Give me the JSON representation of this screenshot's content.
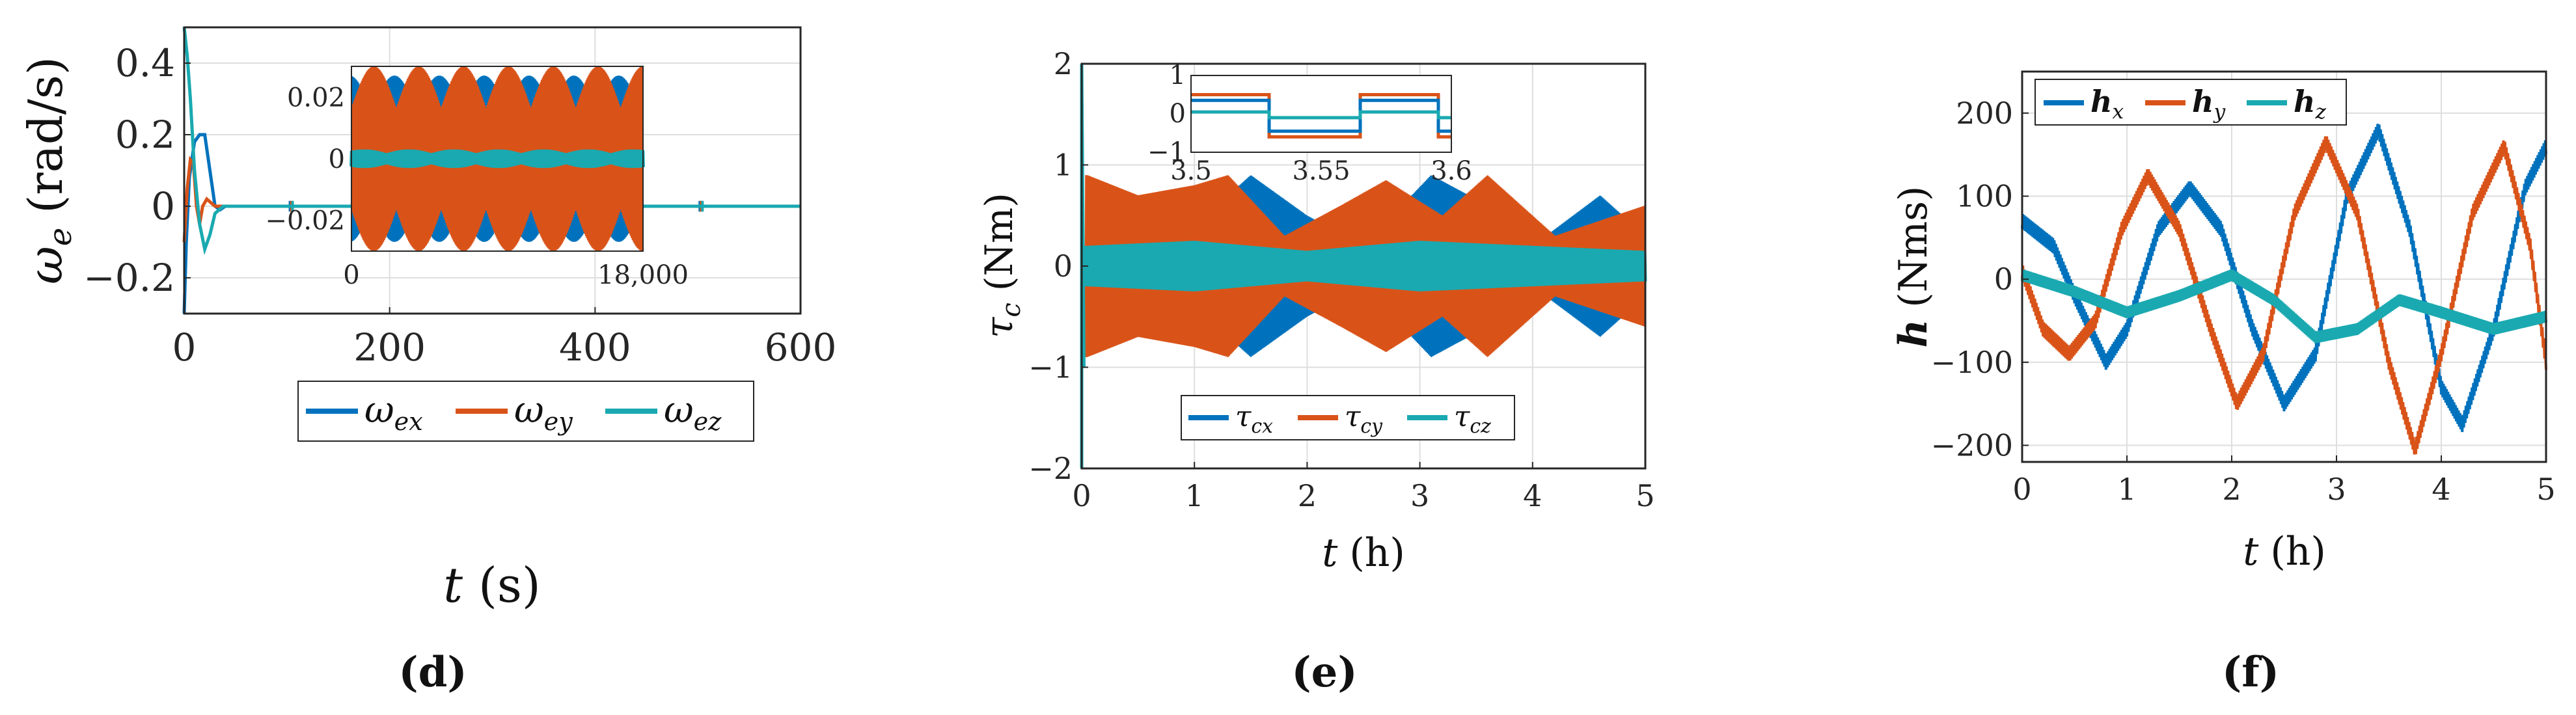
{
  "colors": {
    "blue": "#0072BD",
    "orange": "#D95319",
    "teal": "#1AA9B0",
    "grid": "#DEDEDE",
    "axis": "#262626"
  },
  "chart_data": [
    {
      "id": "d",
      "caption": "(d)",
      "type": "line",
      "xlabel_sym": "t",
      "xlabel_unit": "(s)",
      "ylabel_sym": "ω",
      "ylabel_sub": "e",
      "ylabel_unit": "(rad/s)",
      "xlim": [
        0,
        600
      ],
      "ylim": [
        -0.3,
        0.5
      ],
      "xticks": [
        0,
        200,
        400,
        600
      ],
      "xtick_labels": [
        "0",
        "200",
        "400",
        "600"
      ],
      "yticks": [
        -0.2,
        0,
        0.2,
        0.4
      ],
      "ytick_labels": [
        "−0.2",
        "0",
        "0.2",
        "0.4"
      ],
      "legend": [
        {
          "sym": "ω",
          "sub": "ex",
          "color": "blue"
        },
        {
          "sym": "ω",
          "sub": "ey",
          "color": "orange"
        },
        {
          "sym": "ω",
          "sub": "ez",
          "color": "teal"
        }
      ],
      "series": [
        {
          "name": "ω_ex",
          "color": "blue",
          "points": [
            [
              0,
              -0.3
            ],
            [
              2,
              -0.1
            ],
            [
              5,
              0.08
            ],
            [
              10,
              0.18
            ],
            [
              15,
              0.2
            ],
            [
              20,
              0.2
            ],
            [
              25,
              0.1
            ],
            [
              30,
              0.0
            ],
            [
              35,
              -0.01
            ],
            [
              40,
              0
            ],
            [
              600,
              0
            ]
          ]
        },
        {
          "name": "ω_ey",
          "color": "orange",
          "points": [
            [
              0,
              -0.1
            ],
            [
              3,
              0.05
            ],
            [
              6,
              0.13
            ],
            [
              9,
              0.12
            ],
            [
              12,
              0.0
            ],
            [
              15,
              -0.05
            ],
            [
              18,
              0.0
            ],
            [
              22,
              0.02
            ],
            [
              30,
              0
            ],
            [
              600,
              0
            ]
          ]
        },
        {
          "name": "ω_ez",
          "color": "teal",
          "points": [
            [
              0,
              0.5
            ],
            [
              3,
              0.42
            ],
            [
              6,
              0.3
            ],
            [
              10,
              0.1
            ],
            [
              15,
              -0.05
            ],
            [
              20,
              -0.12
            ],
            [
              25,
              -0.08
            ],
            [
              30,
              -0.02
            ],
            [
              38,
              0
            ],
            [
              600,
              0
            ]
          ]
        }
      ],
      "spikes": [
        103,
        203,
        302,
        402,
        502
      ],
      "inset": {
        "xlim": [
          0,
          18000
        ],
        "ylim": [
          -0.03,
          0.03
        ],
        "xticks": [
          0,
          18000
        ],
        "xtick_labels": [
          "0",
          "18,000"
        ],
        "yticks": [
          -0.02,
          0,
          0.02
        ],
        "ytick_labels": [
          "−0.02",
          "0",
          "0.02"
        ],
        "blue_amp": 0.027,
        "orange_amp": 0.03,
        "teal_amp": 0.003
      }
    },
    {
      "id": "e",
      "caption": "(e)",
      "type": "line",
      "xlabel_sym": "t",
      "xlabel_unit": "(h)",
      "ylabel_sym": "τ",
      "ylabel_sub": "c",
      "ylabel_unit": "(Nm)",
      "xlim": [
        0,
        5
      ],
      "ylim": [
        -2,
        2
      ],
      "xticks": [
        0,
        1,
        2,
        3,
        4,
        5
      ],
      "xtick_labels": [
        "0",
        "1",
        "2",
        "3",
        "4",
        "5"
      ],
      "yticks": [
        -2,
        -1,
        0,
        1,
        2
      ],
      "ytick_labels": [
        "−2",
        "−1",
        "0",
        "1",
        "2"
      ],
      "legend": [
        {
          "sym": "τ",
          "sub": "cx",
          "color": "blue"
        },
        {
          "sym": "τ",
          "sub": "cy",
          "color": "orange"
        },
        {
          "sym": "τ",
          "sub": "cz",
          "color": "teal"
        }
      ],
      "envelopes": {
        "blue": [
          [
            0.05,
            0.4
          ],
          [
            0.5,
            0.7
          ],
          [
            0.9,
            0.3
          ],
          [
            1.5,
            0.9
          ],
          [
            2.0,
            0.5
          ],
          [
            2.5,
            0.2
          ],
          [
            3.1,
            0.9
          ],
          [
            3.6,
            0.6
          ],
          [
            4.0,
            0.2
          ],
          [
            4.6,
            0.7
          ],
          [
            5.0,
            0.3
          ]
        ],
        "orange": [
          [
            0.05,
            0.9
          ],
          [
            0.5,
            0.7
          ],
          [
            1.0,
            0.8
          ],
          [
            1.3,
            0.9
          ],
          [
            1.8,
            0.3
          ],
          [
            2.3,
            0.6
          ],
          [
            2.7,
            0.85
          ],
          [
            3.2,
            0.5
          ],
          [
            3.6,
            0.9
          ],
          [
            4.2,
            0.3
          ],
          [
            5.0,
            0.6
          ]
        ],
        "teal": [
          [
            0.05,
            0.2
          ],
          [
            1.0,
            0.25
          ],
          [
            2.0,
            0.15
          ],
          [
            3.0,
            0.25
          ],
          [
            4.0,
            0.2
          ],
          [
            5.0,
            0.15
          ]
        ]
      },
      "inset": {
        "xlim": [
          3.5,
          3.6
        ],
        "ylim": [
          -1,
          1
        ],
        "xticks": [
          3.5,
          3.55,
          3.6
        ],
        "xtick_labels": [
          "3.5",
          "3.55",
          "3.6"
        ],
        "yticks": [
          -1,
          0,
          1
        ],
        "ytick_labels": [
          "−1",
          "0",
          "1"
        ],
        "switch_times": [
          3.53,
          3.565,
          3.595
        ],
        "orange_levels": [
          0.5,
          -0.6
        ],
        "blue_levels": [
          0.35,
          -0.45
        ],
        "teal_levels": [
          0.05,
          -0.1
        ]
      }
    },
    {
      "id": "f",
      "caption": "(f)",
      "type": "line",
      "xlabel_sym": "t",
      "xlabel_unit": "(h)",
      "ylabel_sym": "h",
      "ylabel_unit": "(Nms)",
      "xlim": [
        0,
        5
      ],
      "ylim": [
        -220,
        250
      ],
      "xticks": [
        0,
        1,
        2,
        3,
        4,
        5
      ],
      "xtick_labels": [
        "0",
        "1",
        "2",
        "3",
        "4",
        "5"
      ],
      "yticks": [
        -200,
        -100,
        0,
        100,
        200
      ],
      "ytick_labels": [
        "−200",
        "−100",
        "0",
        "100",
        "200"
      ],
      "legend": [
        {
          "sym": "h",
          "sub": "x",
          "color": "blue"
        },
        {
          "sym": "h",
          "sub": "y",
          "color": "orange"
        },
        {
          "sym": "h",
          "sub": "z",
          "color": "teal"
        }
      ],
      "series": [
        {
          "name": "h_x",
          "color": "blue",
          "points": [
            [
              0,
              70
            ],
            [
              0.3,
              40
            ],
            [
              0.5,
              -20
            ],
            [
              0.8,
              -100
            ],
            [
              1.0,
              -60
            ],
            [
              1.3,
              60
            ],
            [
              1.6,
              110
            ],
            [
              1.9,
              60
            ],
            [
              2.2,
              -60
            ],
            [
              2.5,
              -150
            ],
            [
              2.8,
              -90
            ],
            [
              3.1,
              100
            ],
            [
              3.4,
              180
            ],
            [
              3.7,
              60
            ],
            [
              4.0,
              -130
            ],
            [
              4.2,
              -175
            ],
            [
              4.5,
              -60
            ],
            [
              4.8,
              110
            ],
            [
              5.0,
              160
            ]
          ]
        },
        {
          "name": "h_y",
          "color": "orange",
          "points": [
            [
              0,
              10
            ],
            [
              0.2,
              -60
            ],
            [
              0.45,
              -90
            ],
            [
              0.7,
              -50
            ],
            [
              0.95,
              60
            ],
            [
              1.2,
              125
            ],
            [
              1.5,
              60
            ],
            [
              1.8,
              -60
            ],
            [
              2.05,
              -150
            ],
            [
              2.3,
              -90
            ],
            [
              2.6,
              80
            ],
            [
              2.9,
              165
            ],
            [
              3.2,
              80
            ],
            [
              3.5,
              -100
            ],
            [
              3.75,
              -205
            ],
            [
              4.0,
              -90
            ],
            [
              4.3,
              80
            ],
            [
              4.6,
              160
            ],
            [
              4.85,
              40
            ],
            [
              5.0,
              -100
            ]
          ]
        },
        {
          "name": "h_z",
          "color": "teal",
          "points": [
            [
              0,
              5
            ],
            [
              0.5,
              -15
            ],
            [
              1.0,
              -40
            ],
            [
              1.5,
              -20
            ],
            [
              2.0,
              5
            ],
            [
              2.4,
              -25
            ],
            [
              2.8,
              -70
            ],
            [
              3.2,
              -60
            ],
            [
              3.6,
              -25
            ],
            [
              4.0,
              -40
            ],
            [
              4.5,
              -60
            ],
            [
              5.0,
              -45
            ]
          ]
        }
      ]
    }
  ]
}
